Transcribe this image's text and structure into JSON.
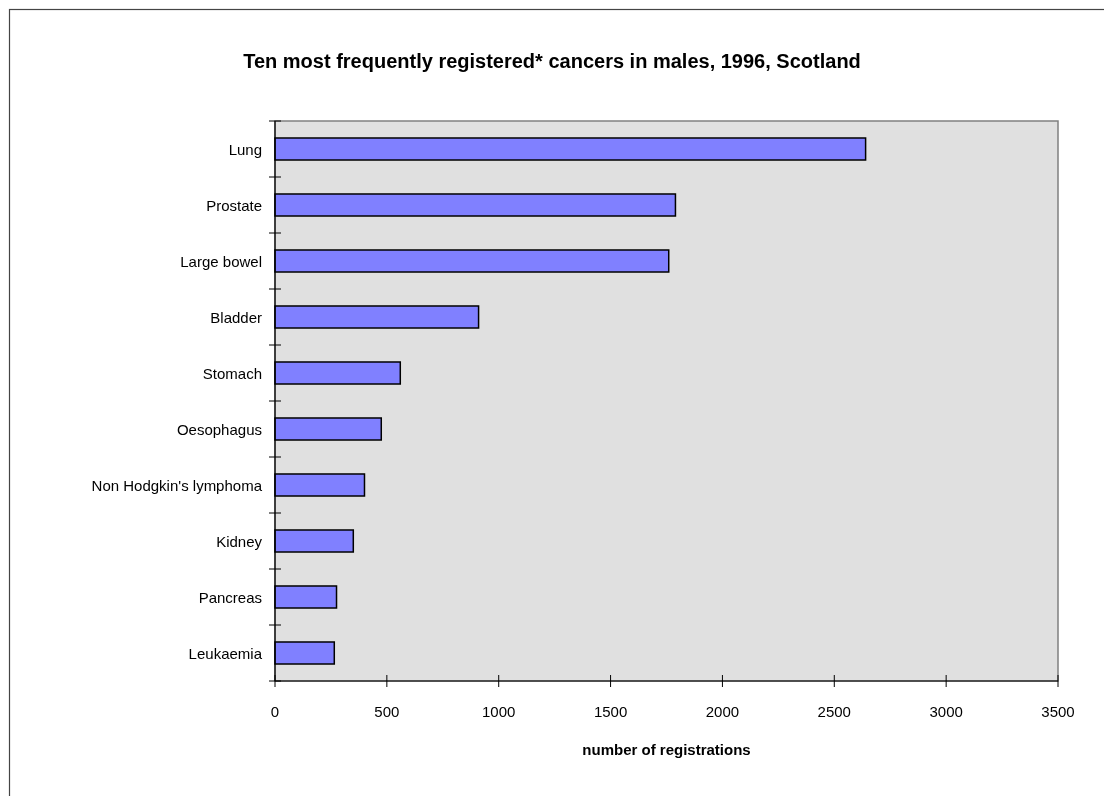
{
  "chart_data": {
    "type": "bar",
    "orientation": "horizontal",
    "title": "Ten most frequently registered* cancers in males, 1996, Scotland",
    "xlabel": "number of registrations",
    "categories": [
      "Lung",
      "Prostate",
      "Large bowel",
      "Bladder",
      "Stomach",
      "Oesophagus",
      "Non Hodgkin's lymphoma",
      "Kidney",
      "Pancreas",
      "Leukaemia"
    ],
    "values": [
      2640,
      1790,
      1760,
      910,
      560,
      475,
      400,
      350,
      275,
      265
    ],
    "color": "#8080ff",
    "xlim": [
      0,
      3500
    ],
    "xticks": [
      0,
      500,
      1000,
      1500,
      2000,
      2500,
      3000,
      3500
    ]
  }
}
